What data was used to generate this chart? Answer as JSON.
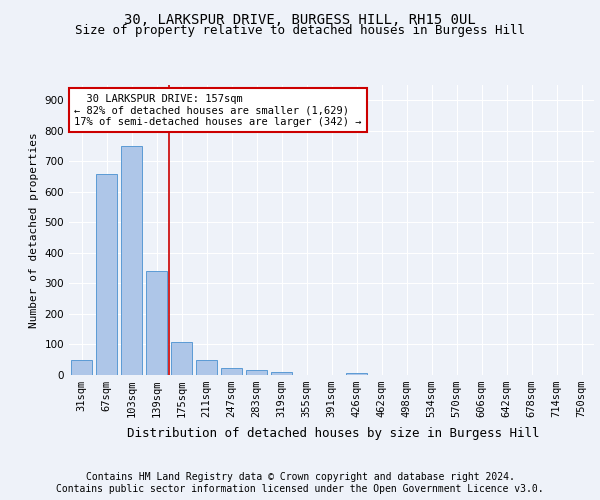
{
  "title": "30, LARKSPUR DRIVE, BURGESS HILL, RH15 0UL",
  "subtitle": "Size of property relative to detached houses in Burgess Hill",
  "xlabel": "Distribution of detached houses by size in Burgess Hill",
  "ylabel": "Number of detached properties",
  "categories": [
    "31sqm",
    "67sqm",
    "103sqm",
    "139sqm",
    "175sqm",
    "211sqm",
    "247sqm",
    "283sqm",
    "319sqm",
    "355sqm",
    "391sqm",
    "426sqm",
    "462sqm",
    "498sqm",
    "534sqm",
    "570sqm",
    "606sqm",
    "642sqm",
    "678sqm",
    "714sqm",
    "750sqm"
  ],
  "values": [
    50,
    660,
    750,
    340,
    108,
    50,
    22,
    15,
    10,
    0,
    0,
    8,
    0,
    0,
    0,
    0,
    0,
    0,
    0,
    0,
    0
  ],
  "bar_color": "#aec6e8",
  "bar_edgecolor": "#5b9bd5",
  "vline_x_index": 3.5,
  "vline_color": "#cc0000",
  "annotation_line1": "  30 LARKSPUR DRIVE: 157sqm",
  "annotation_line2": "← 82% of detached houses are smaller (1,629)",
  "annotation_line3": "17% of semi-detached houses are larger (342) →",
  "annotation_box_color": "#ffffff",
  "annotation_box_edgecolor": "#cc0000",
  "ylim": [
    0,
    950
  ],
  "yticks": [
    0,
    100,
    200,
    300,
    400,
    500,
    600,
    700,
    800,
    900
  ],
  "footer_line1": "Contains HM Land Registry data © Crown copyright and database right 2024.",
  "footer_line2": "Contains public sector information licensed under the Open Government Licence v3.0.",
  "background_color": "#eef2f9",
  "plot_background": "#eef2f9",
  "grid_color": "#ffffff",
  "title_fontsize": 10,
  "subtitle_fontsize": 9,
  "xlabel_fontsize": 9,
  "ylabel_fontsize": 8,
  "tick_fontsize": 7.5,
  "footer_fontsize": 7,
  "annotation_fontsize": 7.5
}
